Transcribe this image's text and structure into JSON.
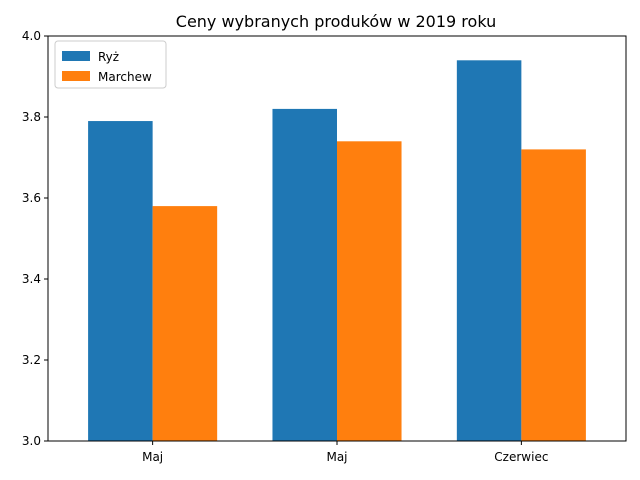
{
  "chart_data": {
    "type": "bar",
    "title": "Ceny wybranych produków w 2019 roku",
    "xlabel": "",
    "ylabel": "",
    "categories": [
      "Maj",
      "Maj",
      "Czerwiec"
    ],
    "series": [
      {
        "name": "Ryż",
        "values": [
          3.79,
          3.82,
          3.94
        ],
        "color": "#1f77b4"
      },
      {
        "name": "Marchew",
        "values": [
          3.58,
          3.74,
          3.72
        ],
        "color": "#ff7f0e"
      }
    ],
    "ylim": [
      3.0,
      4.0
    ],
    "yticks": [
      "3.0",
      "3.2",
      "3.4",
      "3.6",
      "3.8",
      "4.0"
    ],
    "grid": false,
    "legend_position": "top-left"
  }
}
